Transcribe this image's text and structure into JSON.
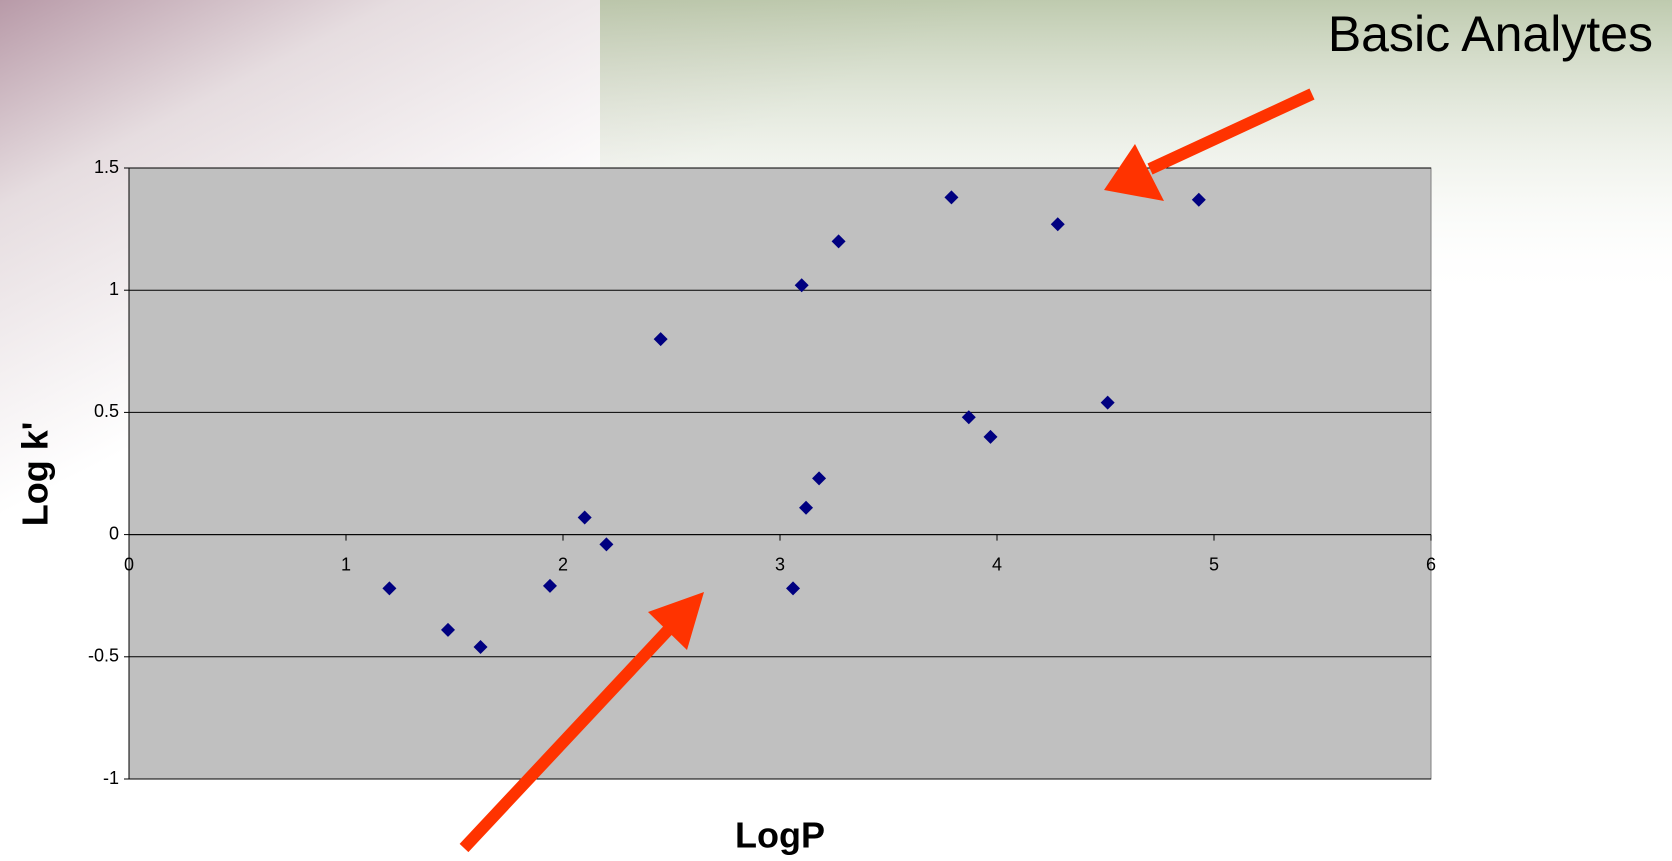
{
  "chart_data": {
    "type": "scatter",
    "annotation": "Basic Analytes",
    "x_label": "LogP",
    "y_label": "Log k'",
    "x": [
      1.2,
      1.47,
      1.62,
      1.94,
      2.1,
      2.2,
      2.45,
      3.06,
      3.1,
      3.12,
      3.18,
      3.27,
      3.79,
      3.87,
      3.97,
      4.28,
      4.51,
      4.93
    ],
    "values": [
      -0.22,
      -0.39,
      -0.46,
      -0.21,
      0.07,
      -0.04,
      0.8,
      -0.22,
      1.02,
      0.11,
      0.23,
      1.2,
      1.38,
      0.48,
      0.4,
      1.27,
      0.54,
      1.37
    ],
    "color": "#000080",
    "xlim": [
      0,
      6
    ],
    "xticks": [
      0,
      1,
      2,
      3,
      4,
      5,
      6
    ],
    "ylim": [
      -1,
      1.5
    ],
    "yticks": [
      -1,
      -0.5,
      0,
      0.5,
      1,
      1.5
    ],
    "grid": true
  }
}
